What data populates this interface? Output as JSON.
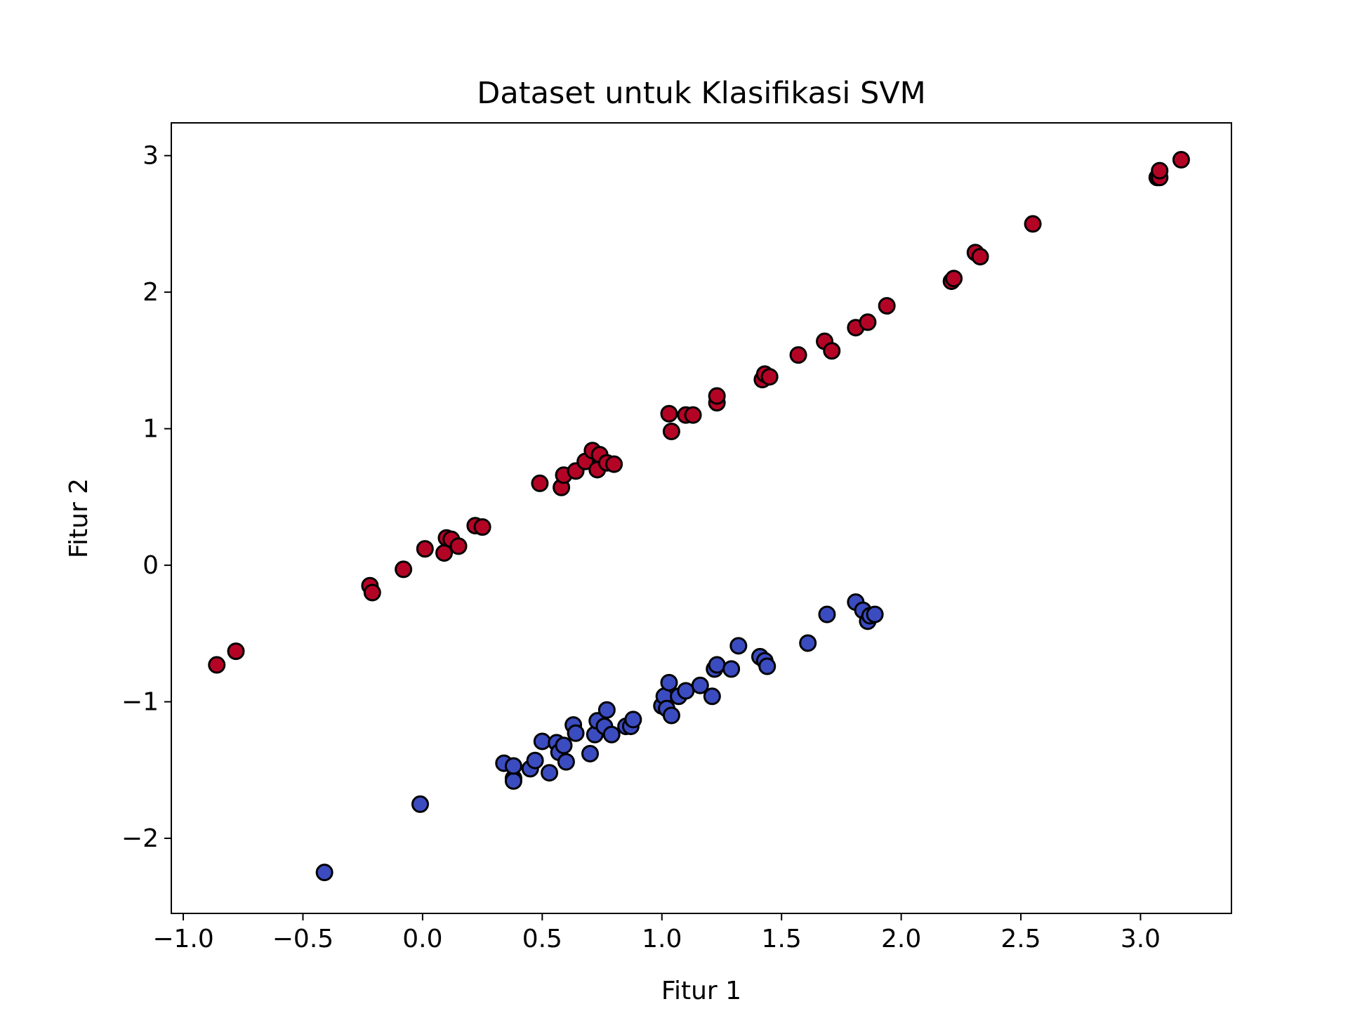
{
  "chart_data": {
    "type": "scatter",
    "title": "Dataset untuk Klasifikasi SVM",
    "xlabel": "Fitur 1",
    "ylabel": "Fitur 2",
    "xlim": [
      -1.05,
      3.38
    ],
    "ylim": [
      -2.55,
      3.24
    ],
    "grid": false,
    "x_ticks": [
      -1.0,
      -0.5,
      0.0,
      0.5,
      1.0,
      1.5,
      2.0,
      2.5,
      3.0
    ],
    "x_tick_labels": [
      "−1.0",
      "−0.5",
      "0.0",
      "0.5",
      "1.0",
      "1.5",
      "2.0",
      "2.5",
      "3.0"
    ],
    "y_ticks": [
      -2,
      -1,
      0,
      1,
      2,
      3
    ],
    "y_tick_labels": [
      "−2",
      "−1",
      "0",
      "1",
      "2",
      "3"
    ],
    "series": [
      {
        "color": "#b40426",
        "points": [
          [
            -0.86,
            -0.73
          ],
          [
            -0.78,
            -0.63
          ],
          [
            -0.22,
            -0.15
          ],
          [
            -0.21,
            -0.2
          ],
          [
            -0.08,
            -0.03
          ],
          [
            0.01,
            0.12
          ],
          [
            0.09,
            0.09
          ],
          [
            0.1,
            0.2
          ],
          [
            0.12,
            0.19
          ],
          [
            0.15,
            0.14
          ],
          [
            0.22,
            0.29
          ],
          [
            0.25,
            0.28
          ],
          [
            0.49,
            0.6
          ],
          [
            0.58,
            0.57
          ],
          [
            0.59,
            0.66
          ],
          [
            0.64,
            0.69
          ],
          [
            0.68,
            0.76
          ],
          [
            0.71,
            0.84
          ],
          [
            0.73,
            0.7
          ],
          [
            0.74,
            0.81
          ],
          [
            0.77,
            0.75
          ],
          [
            0.8,
            0.74
          ],
          [
            1.03,
            1.11
          ],
          [
            1.04,
            0.98
          ],
          [
            1.1,
            1.1
          ],
          [
            1.13,
            1.1
          ],
          [
            1.23,
            1.19
          ],
          [
            1.23,
            1.24
          ],
          [
            1.42,
            1.36
          ],
          [
            1.43,
            1.4
          ],
          [
            1.45,
            1.38
          ],
          [
            1.57,
            1.54
          ],
          [
            1.68,
            1.64
          ],
          [
            1.71,
            1.57
          ],
          [
            1.81,
            1.74
          ],
          [
            1.86,
            1.78
          ],
          [
            1.94,
            1.9
          ],
          [
            2.21,
            2.08
          ],
          [
            2.22,
            2.1
          ],
          [
            2.31,
            2.29
          ],
          [
            2.33,
            2.26
          ],
          [
            2.55,
            2.5
          ],
          [
            3.07,
            2.84
          ],
          [
            3.08,
            2.84
          ],
          [
            3.08,
            2.89
          ],
          [
            3.17,
            2.97
          ]
        ]
      },
      {
        "color": "#3b4cc0",
        "points": [
          [
            -0.41,
            -2.25
          ],
          [
            -0.01,
            -1.75
          ],
          [
            0.34,
            -1.45
          ],
          [
            0.38,
            -1.56
          ],
          [
            0.38,
            -1.58
          ],
          [
            0.38,
            -1.47
          ],
          [
            0.45,
            -1.49
          ],
          [
            0.47,
            -1.43
          ],
          [
            0.5,
            -1.29
          ],
          [
            0.53,
            -1.52
          ],
          [
            0.56,
            -1.3
          ],
          [
            0.57,
            -1.37
          ],
          [
            0.59,
            -1.32
          ],
          [
            0.6,
            -1.44
          ],
          [
            0.63,
            -1.17
          ],
          [
            0.64,
            -1.23
          ],
          [
            0.7,
            -1.38
          ],
          [
            0.72,
            -1.24
          ],
          [
            0.73,
            -1.14
          ],
          [
            0.76,
            -1.18
          ],
          [
            0.77,
            -1.06
          ],
          [
            0.79,
            -1.24
          ],
          [
            0.85,
            -1.18
          ],
          [
            0.87,
            -1.18
          ],
          [
            0.88,
            -1.13
          ],
          [
            1.0,
            -1.03
          ],
          [
            1.01,
            -0.96
          ],
          [
            1.02,
            -1.05
          ],
          [
            1.03,
            -0.86
          ],
          [
            1.04,
            -1.1
          ],
          [
            1.07,
            -0.96
          ],
          [
            1.1,
            -0.92
          ],
          [
            1.16,
            -0.88
          ],
          [
            1.21,
            -0.96
          ],
          [
            1.22,
            -0.76
          ],
          [
            1.23,
            -0.73
          ],
          [
            1.29,
            -0.76
          ],
          [
            1.32,
            -0.59
          ],
          [
            1.41,
            -0.67
          ],
          [
            1.43,
            -0.7
          ],
          [
            1.44,
            -0.74
          ],
          [
            1.61,
            -0.57
          ],
          [
            1.69,
            -0.36
          ],
          [
            1.81,
            -0.27
          ],
          [
            1.84,
            -0.33
          ],
          [
            1.86,
            -0.41
          ],
          [
            1.87,
            -0.37
          ],
          [
            1.89,
            -0.36
          ]
        ]
      }
    ]
  }
}
